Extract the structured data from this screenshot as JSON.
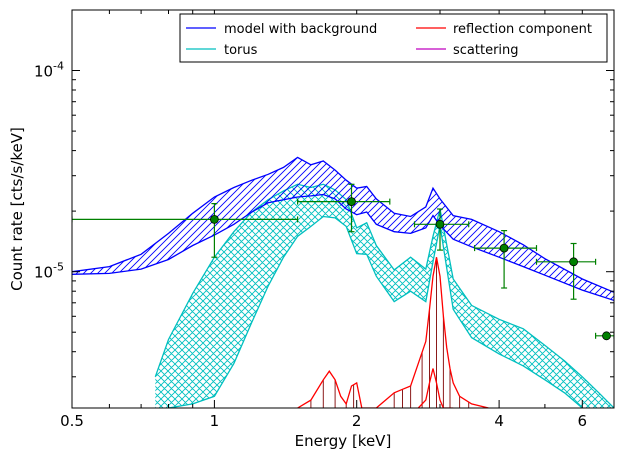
{
  "chart_data": {
    "type": "line",
    "title": "",
    "xlabel": "Energy [keV]",
    "ylabel": "Count rate [cts/s/keV]",
    "x_scale": "log",
    "y_scale": "log",
    "xlim": [
      0.5,
      7.0
    ],
    "ylim": [
      2.1e-06,
      0.0002
    ],
    "x_ticks": [
      {
        "value": 0.5,
        "label": "0.5"
      },
      {
        "value": 1,
        "label": "1"
      },
      {
        "value": 2,
        "label": "2"
      },
      {
        "value": 4,
        "label": "4"
      },
      {
        "value": 6,
        "label": "6"
      }
    ],
    "y_ticks": [
      {
        "value": 1e-05,
        "base": "10",
        "exp": "-5"
      },
      {
        "value": 0.0001,
        "base": "10",
        "exp": "-4"
      }
    ],
    "legend_position": "top-right",
    "legend": [
      {
        "name": "model with background",
        "color": "#0000ff"
      },
      {
        "name": "torus",
        "color": "#00bfbf"
      },
      {
        "name": "reflection component",
        "color": "#ff0000"
      },
      {
        "name": "scattering",
        "color": "#bf00bf"
      }
    ],
    "bands": [
      {
        "name": "model with background",
        "color": "#0000ff",
        "hatch": "diagonal",
        "x": [
          0.5,
          0.6,
          0.7,
          0.8,
          0.9,
          1.0,
          1.1,
          1.2,
          1.3,
          1.4,
          1.5,
          1.6,
          1.7,
          1.8,
          1.9,
          2.0,
          2.1,
          2.2,
          2.4,
          2.6,
          2.8,
          2.9,
          3.0,
          3.2,
          3.5,
          4.0,
          4.5,
          5.0,
          6.0,
          7.0
        ],
        "upper": [
          1e-05,
          1.06e-05,
          1.22e-05,
          1.55e-05,
          1.95e-05,
          2.35e-05,
          2.62e-05,
          2.85e-05,
          3.05e-05,
          3.3e-05,
          3.7e-05,
          3.4e-05,
          3.55e-05,
          3.2e-05,
          2.85e-05,
          2.6e-05,
          2.65e-05,
          2.3e-05,
          1.95e-05,
          1.88e-05,
          2.1e-05,
          2.6e-05,
          2.3e-05,
          1.9e-05,
          1.82e-05,
          1.58e-05,
          1.36e-05,
          1.16e-05,
          9.2e-06,
          7.9e-06
        ],
        "lower": [
          9.7e-06,
          9.8e-06,
          1.03e-05,
          1.15e-05,
          1.35e-05,
          1.52e-05,
          1.72e-05,
          1.98e-05,
          2.2e-05,
          2.28e-05,
          2.35e-05,
          2.38e-05,
          2.42e-05,
          2.3e-05,
          2.05e-05,
          1.92e-05,
          1.98e-05,
          1.72e-05,
          1.58e-05,
          1.55e-05,
          1.65e-05,
          1.9e-05,
          1.7e-05,
          1.45e-05,
          1.33e-05,
          1.18e-05,
          1.06e-05,
          9.6e-06,
          8.1e-06,
          7.2e-06
        ]
      },
      {
        "name": "torus",
        "color": "#00bfbf",
        "hatch": "cross",
        "x": [
          0.75,
          0.8,
          0.9,
          1.0,
          1.1,
          1.2,
          1.3,
          1.4,
          1.5,
          1.6,
          1.7,
          1.8,
          1.9,
          2.0,
          2.1,
          2.2,
          2.4,
          2.6,
          2.8,
          2.9,
          3.0,
          3.2,
          3.5,
          4.0,
          4.5,
          5.0,
          5.5,
          6.0,
          6.5,
          7.0
        ],
        "upper": [
          3e-06,
          4.6e-06,
          7.8e-06,
          1.18e-05,
          1.58e-05,
          1.98e-05,
          2.28e-05,
          2.52e-05,
          2.72e-05,
          2.62e-05,
          2.72e-05,
          2.55e-05,
          2.28e-05,
          1.65e-05,
          1.75e-05,
          1.35e-05,
          1.02e-05,
          1.18e-05,
          1.03e-05,
          1.5e-05,
          2.05e-05,
          9.2e-06,
          6.8e-06,
          5.8e-06,
          5.2e-06,
          4.3e-06,
          3.6e-06,
          3e-06,
          2.5e-06,
          2.1e-06
        ],
        "lower": [
          2.05e-06,
          2.1e-06,
          2.2e-06,
          2.4e-06,
          3.5e-06,
          5.6e-06,
          8.5e-06,
          1.18e-05,
          1.5e-05,
          1.68e-05,
          1.88e-05,
          1.85e-05,
          1.68e-05,
          1.23e-05,
          1.22e-05,
          9.5e-06,
          7.1e-06,
          8e-06,
          7.1e-06,
          1.12e-05,
          1.7e-05,
          6.5e-06,
          4.7e-06,
          3.9e-06,
          3.4e-06,
          2.9e-06,
          2.5e-06,
          2.1e-06,
          2.05e-06,
          2.05e-06
        ]
      }
    ],
    "series": [
      {
        "name": "reflection component",
        "color": "#ff0000",
        "x": [
          1.5,
          1.6,
          1.7,
          1.75,
          1.8,
          1.85,
          1.9,
          1.95,
          2.0,
          2.05,
          2.2,
          2.4,
          2.5,
          2.6,
          2.7,
          2.8,
          2.85,
          2.9,
          2.95,
          3.0,
          3.05,
          3.1,
          3.15,
          3.2,
          3.3,
          3.5,
          3.8
        ],
        "y": [
          2.1e-06,
          2.3e-06,
          2.9e-06,
          3.2e-06,
          2.9e-06,
          2.4e-06,
          2.2e-06,
          2.7e-06,
          2.8e-06,
          2.1e-06,
          2.1e-06,
          2.5e-06,
          2.6e-06,
          2.7e-06,
          3.5e-06,
          4.5e-06,
          6.5e-06,
          9.5e-06,
          1.18e-05,
          9.5e-06,
          6e-06,
          4.2e-06,
          3.3e-06,
          2.8e-06,
          2.4e-06,
          2.2e-06,
          2.1e-06
        ]
      },
      {
        "name": "reflection component (lower)",
        "color": "#ff0000",
        "x": [
          2.7,
          2.8,
          2.85,
          2.9,
          2.95,
          3.0,
          3.05,
          3.1,
          3.2
        ],
        "y": [
          2.1e-06,
          2.3e-06,
          2.8e-06,
          3.3e-06,
          2.8e-06,
          2.3e-06,
          2.1e-06,
          2.1e-06,
          2.1e-06
        ]
      }
    ],
    "stems": {
      "color": "#8b1a1a",
      "x": [
        1.5,
        1.6,
        1.7,
        1.8,
        1.9,
        1.97,
        2.1,
        2.4,
        2.5,
        2.6,
        2.75,
        2.85,
        2.95,
        3.05,
        3.15,
        3.3,
        3.45
      ]
    },
    "data_points": {
      "color": "#008000",
      "points": [
        {
          "x": 1.0,
          "y": 1.82e-05,
          "xlo": 0.5,
          "xhi": 1.5,
          "ylo": 1.18e-05,
          "yhi": 2.18e-05
        },
        {
          "x": 1.95,
          "y": 2.23e-05,
          "xlo": 1.5,
          "xhi": 2.35,
          "ylo": 1.58e-05,
          "yhi": 2.72e-05
        },
        {
          "x": 3.0,
          "y": 1.72e-05,
          "xlo": 2.65,
          "xhi": 3.45,
          "ylo": 1.28e-05,
          "yhi": 2.05e-05
        },
        {
          "x": 4.1,
          "y": 1.31e-05,
          "xlo": 3.55,
          "xhi": 4.8,
          "ylo": 8.3e-06,
          "yhi": 1.6e-05
        },
        {
          "x": 5.75,
          "y": 1.12e-05,
          "xlo": 4.8,
          "xhi": 6.4,
          "ylo": 7.3e-06,
          "yhi": 1.38e-05
        },
        {
          "x": 6.75,
          "y": 4.8e-06,
          "xlo": 6.4,
          "xhi": 7.0,
          "ylo": 4.8e-06,
          "yhi": 4.8e-06
        }
      ]
    }
  }
}
